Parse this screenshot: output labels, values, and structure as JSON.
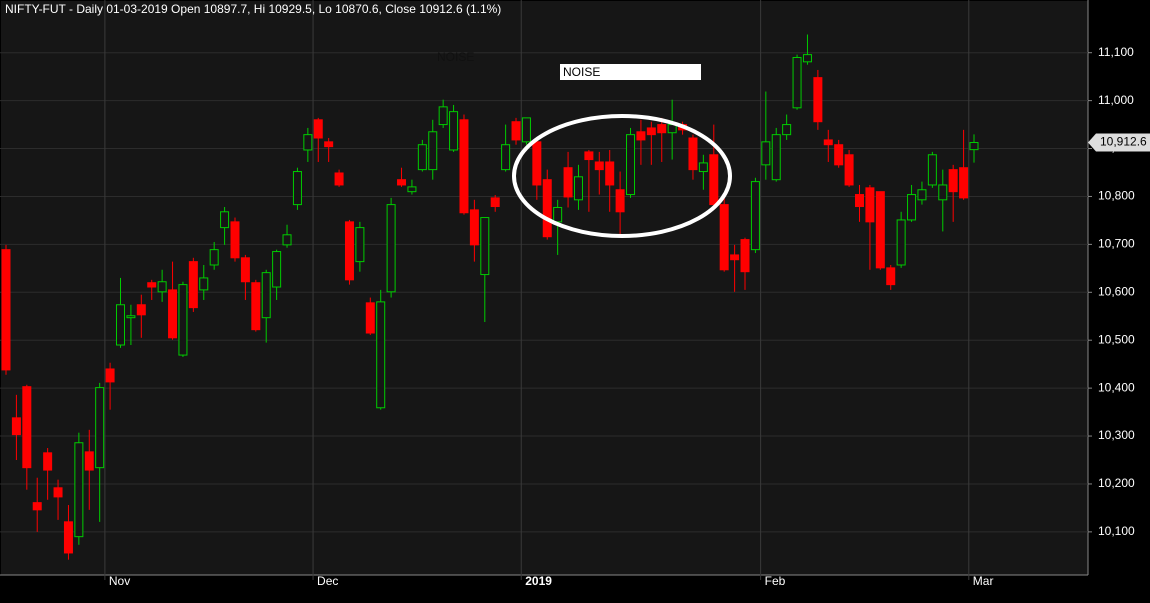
{
  "chart_data": {
    "type": "candlestick",
    "title": "NIFTY-FUT - Daily 01-03-2019 Open 10897.7, Hi 10929.5, Lo 10870.6, Close 10912.6 (1.1%)",
    "categories": [
      null,
      null,
      null,
      null,
      null,
      null,
      null,
      null,
      null,
      null,
      "Nov",
      null,
      null,
      null,
      null,
      null,
      null,
      null,
      null,
      null,
      null,
      null,
      null,
      null,
      null,
      null,
      null,
      null,
      null,
      null,
      "Dec",
      null,
      null,
      null,
      null,
      null,
      null,
      null,
      null,
      null,
      null,
      null,
      null,
      null,
      null,
      null,
      null,
      null,
      null,
      null,
      "2019",
      null,
      null,
      null,
      null,
      null,
      null,
      null,
      null,
      null,
      null,
      null,
      null,
      null,
      null,
      null,
      null,
      null,
      null,
      null,
      null,
      null,
      null,
      "Feb",
      null,
      null,
      null,
      null,
      null,
      null,
      null,
      null,
      null,
      null,
      null,
      null,
      null,
      null,
      null,
      null,
      null,
      null,
      null,
      "Mar"
    ],
    "series": [
      {
        "name": "NIFTY-FUT",
        "up_color": "#00cc00",
        "down_color": "#ff0000",
        "open": [
          10689,
          10338,
          10403,
          10161,
          10265,
          10192,
          10121,
          10090,
          10267,
          10234,
          10440,
          10490,
          10547,
          10574,
          10620,
          10601,
          10605,
          10469,
          10664,
          10605,
          10657,
          10735,
          10747,
          10672,
          10620,
          10547,
          10611,
          10699,
          10783,
          10897,
          10960,
          10914,
          10849,
          10747,
          10664,
          10578,
          10359,
          10601,
          10835,
          10810,
          10856,
          10856,
          10950,
          10897,
          10960,
          10772,
          10637,
          10797,
          10856,
          10956,
          10914,
          10914,
          10835,
          10747,
          10860,
          10793,
          10893,
          10872,
          10872,
          10814,
          10804,
          10935,
          10943,
          10950,
          10933,
          10950,
          10922,
          10852,
          10887,
          10783,
          10678,
          10710,
          10689,
          10866,
          10835,
          10929,
          10985,
          11081,
          11048,
          10918,
          10908,
          10887,
          10804,
          10818,
          10810,
          10651,
          10657,
          10751,
          10793,
          10824,
          10793,
          10856,
          10860,
          10897.7
        ],
        "high": [
          10699,
          10386,
          10407,
          10213,
          10275,
          10209,
          10156,
          10307,
          10313,
          10411,
          10453,
          10630,
          10574,
          10595,
          10626,
          10647,
          10664,
          10622,
          10672,
          10657,
          10705,
          10778,
          10756,
          10678,
          10626,
          10647,
          10689,
          10741,
          10860,
          10943,
          10964,
          10922,
          10856,
          10751,
          10747,
          10589,
          10605,
          10797,
          10860,
          10835,
          10918,
          10960,
          11002,
          10991,
          10971,
          10793,
          10756,
          10803,
          10950,
          10964,
          10964,
          10922,
          10856,
          10793,
          10893,
          10866,
          10897,
          10893,
          10897,
          10852,
          10943,
          10960,
          10956,
          10964,
          11002,
          10956,
          10929,
          10887,
          10950,
          10803,
          10699,
          10714,
          10839,
          11019,
          10943,
          10971,
          11096,
          11138,
          11064,
          10939,
          10918,
          10897,
          10824,
          10824,
          10810,
          10657,
          10768,
          10824,
          10831,
          10893,
          10856,
          10866,
          10939,
          10929.5
        ],
        "low": [
          10428,
          10250,
          10188,
          10100,
          10167,
          10125,
          10042,
          10073,
          10146,
          10121,
          10355,
          10484,
          10490,
          10505,
          10584,
          10580,
          10501,
          10465,
          10559,
          10584,
          10647,
          10699,
          10664,
          10584,
          10518,
          10495,
          10584,
          10693,
          10772,
          10872,
          10872,
          10872,
          10820,
          10616,
          10643,
          10511,
          10355,
          10589,
          10820,
          10804,
          10852,
          10835,
          10943,
          10893,
          10762,
          10664,
          10538,
          10768,
          10852,
          10908,
          10908,
          10793,
          10710,
          10678,
          10777,
          10772,
          10768,
          10804,
          10768,
          10720,
          10797,
          10866,
          10866,
          10872,
          10877,
          10929,
          10835,
          10814,
          10772,
          10643,
          10601,
          10605,
          10682,
          10835,
          10831,
          10918,
          10981,
          11075,
          10939,
          10872,
          10860,
          10820,
          10747,
          10647,
          10647,
          10605,
          10651,
          10747,
          10783,
          10818,
          10727,
          10747,
          10793,
          10870.6
        ],
        "close": [
          10438,
          10303,
          10234,
          10146,
          10229,
          10173,
          10056,
          10286,
          10229,
          10401,
          10413,
          10574,
          10551,
          10553,
          10611,
          10622,
          10505,
          10616,
          10568,
          10630,
          10689,
          10768,
          10672,
          10622,
          10522,
          10641,
          10685,
          10720,
          10852,
          10929,
          10922,
          10904,
          10824,
          10626,
          10735,
          10515,
          10580,
          10783,
          10824,
          10820,
          10908,
          10935,
          10987,
          10977,
          10766,
          10699,
          10756,
          10779,
          10908,
          10918,
          10964,
          10824,
          10716,
          10777,
          10799,
          10841,
          10877,
          10856,
          10824,
          10768,
          10929,
          10918,
          10929,
          10933,
          10950,
          10939,
          10856,
          10870,
          10783,
          10647,
          10668,
          10643,
          10831,
          10914,
          10929,
          10950,
          11090,
          11096,
          10956,
          10908,
          10866,
          10824,
          10779,
          10747,
          10651,
          10616,
          10751,
          10804,
          10814,
          10887,
          10824,
          10810,
          10797,
          10912.6
        ]
      }
    ],
    "ylim": [
      10010,
      11210
    ],
    "yticks": [
      {
        "value": 10100,
        "label": "10,100"
      },
      {
        "value": 10200,
        "label": "10,200"
      },
      {
        "value": 10300,
        "label": "10,300"
      },
      {
        "value": 10400,
        "label": "10,400"
      },
      {
        "value": 10500,
        "label": "10,500"
      },
      {
        "value": 10600,
        "label": "10,600"
      },
      {
        "value": 10700,
        "label": "10,700"
      },
      {
        "value": 10800,
        "label": "10,800"
      },
      {
        "value": 10900,
        "label": "10,900"
      },
      {
        "value": 11000,
        "label": "11,000"
      },
      {
        "value": 11100,
        "label": "11,100"
      }
    ],
    "last_price": {
      "value": 10912.6,
      "label": "10,912.6"
    },
    "annotations": [
      "NOISE",
      "NOISE"
    ],
    "grid": true
  }
}
